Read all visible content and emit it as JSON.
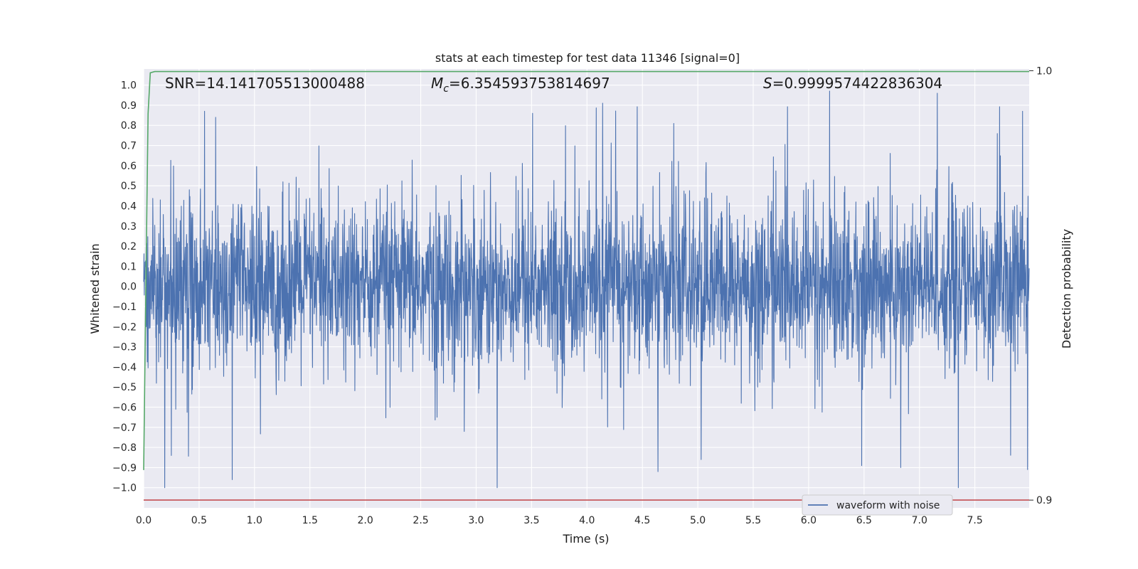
{
  "chart_data": {
    "type": "line",
    "title": "stats at each timestep for test data 11346 [signal=0]",
    "xlabel": "Time (s)",
    "ylabel": "Whitened strain",
    "ylabel_right": "Detection probability",
    "xlim": [
      0.0,
      7.99
    ],
    "ylim": [
      -1.1,
      1.08
    ],
    "ylim_right": [
      0.8982,
      1.0004
    ],
    "x_ticks": [
      "0.0",
      "0.5",
      "1.0",
      "1.5",
      "2.0",
      "2.5",
      "3.0",
      "3.5",
      "4.0",
      "4.5",
      "5.0",
      "5.5",
      "6.0",
      "6.5",
      "7.0",
      "7.5"
    ],
    "y_ticks": [
      "1.0",
      "0.9",
      "0.8",
      "0.7",
      "0.6",
      "0.5",
      "0.4",
      "0.3",
      "0.2",
      "0.1",
      "0.0",
      "−0.1",
      "−0.2",
      "−0.3",
      "−0.4",
      "−0.5",
      "−0.6",
      "−0.7",
      "−0.8",
      "−0.9",
      "−1.0"
    ],
    "y_ticks_right": [
      "1.0",
      "0.9"
    ],
    "grid": true,
    "legend_position": "bottom-right",
    "annotations": {
      "snr": "SNR=14.141705513000488",
      "mc_symbol": "M",
      "mc_sub": "c",
      "mc_value": "=6.354593753814697",
      "s_symbol": "S",
      "s_value": "=0.9999574422836304"
    },
    "series": [
      {
        "name": "waveform with noise",
        "color": "#4c72b0",
        "axis": "left",
        "description_values": {
          "x_range": [
            0.0,
            7.99
          ],
          "amplitude_range": [
            -1.0,
            0.97
          ],
          "sample_count": 3200
        },
        "peaks": [
          {
            "x": 0.55,
            "y": 0.87
          },
          {
            "x": 0.65,
            "y": 0.84
          },
          {
            "x": 0.8,
            "y": -0.96
          },
          {
            "x": 0.19,
            "y": -1.0
          },
          {
            "x": 4.14,
            "y": 0.91
          },
          {
            "x": 3.51,
            "y": 0.86
          },
          {
            "x": 6.19,
            "y": 0.97
          },
          {
            "x": 7.16,
            "y": 0.96
          },
          {
            "x": 6.83,
            "y": -0.9
          },
          {
            "x": 6.48,
            "y": -0.89
          },
          {
            "x": 4.64,
            "y": -0.92
          },
          {
            "x": 7.93,
            "y": 0.87
          },
          {
            "x": 5.03,
            "y": -0.86
          },
          {
            "x": 0.25,
            "y": -0.84
          }
        ]
      },
      {
        "name": "",
        "color": "#55a868",
        "axis": "right",
        "x": [
          0.0,
          0.02,
          0.04,
          0.06,
          0.1,
          0.3,
          1.0,
          7.99
        ],
        "y": [
          0.907,
          0.95,
          0.99,
          0.9995,
          0.9998,
          0.9998,
          0.9998,
          0.9998
        ]
      },
      {
        "name": "",
        "color": "#c44e52",
        "axis": "right",
        "x": [
          0.0,
          7.99
        ],
        "y": [
          0.9,
          0.9
        ]
      }
    ]
  }
}
